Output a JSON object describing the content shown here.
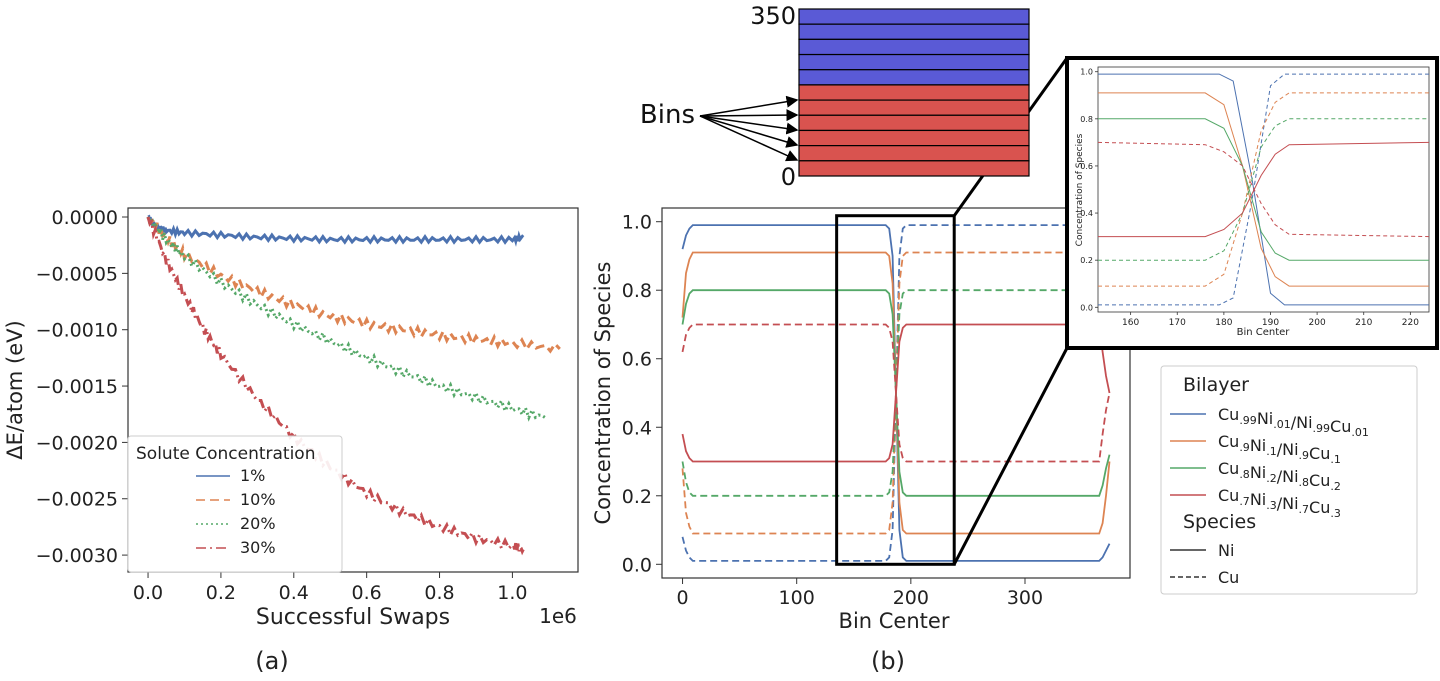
{
  "panel_labels": {
    "a": "(a)",
    "b": "(b)"
  },
  "colors": {
    "blue": "#4c72b0",
    "orange": "#dd8452",
    "green": "#55a868",
    "red": "#c44e52",
    "bin_blue": "#5a5ad6",
    "bin_red": "#d9534f"
  },
  "bins_diagram": {
    "label": "Bins",
    "top_label": "350",
    "bottom_label": "0"
  },
  "chart_data": [
    {
      "type": "line",
      "panel": "(a)",
      "xlabel": "Successful Swaps",
      "x_offset_label": "1e6",
      "ylabel": "ΔE/atom (eV)",
      "xlim": [
        -0.055,
        1.18
      ],
      "ylim": [
        -0.00315,
        8e-05
      ],
      "xticks": [
        0.0,
        0.2,
        0.4,
        0.6,
        0.8,
        1.0
      ],
      "xtick_labels": [
        "0.0",
        "0.2",
        "0.4",
        "0.6",
        "0.8",
        "1.0"
      ],
      "yticks": [
        0.0,
        -0.0005,
        -0.001,
        -0.0015,
        -0.002,
        -0.0025,
        -0.003
      ],
      "ytick_labels": [
        "0.0000",
        "−0.0005",
        "−0.0010",
        "−0.0015",
        "−0.0020",
        "−0.0025",
        "−0.0030"
      ],
      "legend": {
        "title": "Solute Concentration",
        "placement": "lower-left"
      },
      "series": [
        {
          "name": "1%",
          "color": "#4c72b0",
          "dash": "solid",
          "x": [
            0,
            0.02,
            0.05,
            0.1,
            0.2,
            0.3,
            0.4,
            0.5,
            0.6,
            0.7,
            0.8,
            0.9,
            1.0,
            1.03
          ],
          "y": [
            0,
            -8e-05,
            -0.00012,
            -0.00014,
            -0.00016,
            -0.00018,
            -0.00019,
            -0.0002,
            -0.0002,
            -0.0002,
            -0.0002,
            -0.0002,
            -0.0002,
            -0.00018
          ]
        },
        {
          "name": "10%",
          "color": "#dd8452",
          "dash": "dashed",
          "x": [
            0,
            0.05,
            0.1,
            0.2,
            0.3,
            0.4,
            0.5,
            0.6,
            0.7,
            0.8,
            0.9,
            1.0,
            1.13
          ],
          "y": [
            0,
            -0.00018,
            -0.00033,
            -0.00052,
            -0.00066,
            -0.00078,
            -0.00088,
            -0.00095,
            -0.001,
            -0.00105,
            -0.00109,
            -0.00112,
            -0.00117
          ]
        },
        {
          "name": "20%",
          "color": "#55a868",
          "dash": "dotted",
          "x": [
            0,
            0.05,
            0.1,
            0.2,
            0.3,
            0.4,
            0.5,
            0.6,
            0.7,
            0.8,
            0.9,
            1.0,
            1.09
          ],
          "y": [
            0,
            -0.0002,
            -0.00035,
            -0.00058,
            -0.00078,
            -0.00095,
            -0.0011,
            -0.00125,
            -0.00138,
            -0.0015,
            -0.0016,
            -0.0017,
            -0.00178
          ]
        },
        {
          "name": "30%",
          "color": "#c44e52",
          "dash": "dashdot",
          "x": [
            0,
            0.05,
            0.1,
            0.15,
            0.2,
            0.3,
            0.4,
            0.5,
            0.6,
            0.7,
            0.8,
            0.9,
            1.0,
            1.03
          ],
          "y": [
            0,
            -0.00038,
            -0.0007,
            -0.00098,
            -0.00122,
            -0.00162,
            -0.00195,
            -0.00222,
            -0.00245,
            -0.00262,
            -0.00275,
            -0.00285,
            -0.00292,
            -0.00295
          ]
        }
      ]
    },
    {
      "type": "line",
      "panel": "(b)",
      "xlabel": "Bin Center",
      "ylabel": "Concentration of Species",
      "xlim": [
        -18,
        392
      ],
      "ylim": [
        -0.04,
        1.04
      ],
      "xticks": [
        0,
        100,
        200,
        300
      ],
      "xtick_labels": [
        "0",
        "100",
        "200",
        "300"
      ],
      "yticks": [
        0.0,
        0.2,
        0.4,
        0.6,
        0.8,
        1.0
      ],
      "ytick_labels": [
        "0.0",
        "0.2",
        "0.4",
        "0.6",
        "0.8",
        "1.0"
      ],
      "legend": {
        "bilayer_title": "Bilayer",
        "species_title": "Species",
        "bilayer_entries": [
          {
            "prefix": "Cu",
            "s1": ".99",
            "mid": "Ni",
            "s2": ".01",
            "sep": "/Ni",
            "s3": ".99",
            "suf": "Cu",
            "s4": ".01",
            "color": "#4c72b0"
          },
          {
            "prefix": "Cu",
            "s1": ".9",
            "mid": "Ni",
            "s2": ".1",
            "sep": "/Ni",
            "s3": ".9",
            "suf": "Cu",
            "s4": ".1",
            "color": "#dd8452"
          },
          {
            "prefix": "Cu",
            "s1": ".8",
            "mid": "Ni",
            "s2": ".2",
            "sep": "/Ni",
            "s3": ".8",
            "suf": "Cu",
            "s4": ".2",
            "color": "#55a868"
          },
          {
            "prefix": "Cu",
            "s1": ".7",
            "mid": "Ni",
            "s2": ".3",
            "sep": "/Ni",
            "s3": ".7",
            "suf": "Cu",
            "s4": ".3",
            "color": "#c44e52"
          }
        ],
        "species_entries": [
          {
            "name": "Ni",
            "dash": "solid"
          },
          {
            "name": "Cu",
            "dash": "dashed"
          }
        ]
      },
      "zoom_box": {
        "x": [
          135,
          238
        ],
        "y": [
          0.0,
          1.0
        ]
      },
      "series": [
        {
          "bilayer": 0,
          "species": "Ni",
          "x": [
            0,
            3,
            6,
            9,
            178,
            181,
            184,
            187,
            190,
            193,
            196,
            365,
            368,
            371,
            374
          ],
          "y": [
            0.92,
            0.96,
            0.98,
            0.99,
            0.99,
            0.98,
            0.9,
            0.5,
            0.1,
            0.02,
            0.01,
            0.01,
            0.02,
            0.04,
            0.06
          ]
        },
        {
          "bilayer": 0,
          "species": "Cu",
          "x": [
            0,
            3,
            6,
            9,
            178,
            181,
            184,
            187,
            190,
            193,
            196,
            365,
            368,
            371,
            374
          ],
          "y": [
            0.08,
            0.04,
            0.02,
            0.01,
            0.01,
            0.02,
            0.1,
            0.5,
            0.9,
            0.98,
            0.99,
            0.99,
            0.98,
            0.96,
            0.94
          ]
        },
        {
          "bilayer": 1,
          "species": "Ni",
          "x": [
            0,
            3,
            6,
            9,
            178,
            181,
            184,
            187,
            190,
            193,
            196,
            365,
            368,
            371,
            374
          ],
          "y": [
            0.72,
            0.85,
            0.89,
            0.91,
            0.91,
            0.9,
            0.82,
            0.5,
            0.18,
            0.1,
            0.09,
            0.09,
            0.12,
            0.2,
            0.3
          ]
        },
        {
          "bilayer": 1,
          "species": "Cu",
          "x": [
            0,
            3,
            6,
            9,
            178,
            181,
            184,
            187,
            190,
            193,
            196,
            365,
            368,
            371,
            374
          ],
          "y": [
            0.28,
            0.15,
            0.11,
            0.09,
            0.09,
            0.1,
            0.18,
            0.5,
            0.82,
            0.9,
            0.91,
            0.91,
            0.88,
            0.8,
            0.7
          ]
        },
        {
          "bilayer": 2,
          "species": "Ni",
          "x": [
            0,
            3,
            6,
            9,
            178,
            181,
            184,
            187,
            190,
            193,
            196,
            365,
            368,
            371,
            374
          ],
          "y": [
            0.7,
            0.76,
            0.79,
            0.8,
            0.8,
            0.79,
            0.73,
            0.5,
            0.27,
            0.21,
            0.2,
            0.2,
            0.23,
            0.28,
            0.32
          ]
        },
        {
          "bilayer": 2,
          "species": "Cu",
          "x": [
            0,
            3,
            6,
            9,
            178,
            181,
            184,
            187,
            190,
            193,
            196,
            365,
            368,
            371,
            374
          ],
          "y": [
            0.3,
            0.24,
            0.21,
            0.2,
            0.2,
            0.21,
            0.27,
            0.5,
            0.73,
            0.79,
            0.8,
            0.8,
            0.77,
            0.72,
            0.68
          ]
        },
        {
          "bilayer": 3,
          "species": "Ni",
          "x": [
            0,
            3,
            6,
            9,
            178,
            181,
            184,
            187,
            190,
            193,
            196,
            365,
            368,
            371,
            374
          ],
          "y": [
            0.38,
            0.33,
            0.31,
            0.3,
            0.3,
            0.31,
            0.35,
            0.5,
            0.65,
            0.69,
            0.7,
            0.7,
            0.62,
            0.55,
            0.5
          ]
        },
        {
          "bilayer": 3,
          "species": "Cu",
          "x": [
            0,
            3,
            6,
            9,
            178,
            181,
            184,
            187,
            190,
            193,
            196,
            365,
            368,
            371,
            374
          ],
          "y": [
            0.62,
            0.67,
            0.69,
            0.7,
            0.7,
            0.69,
            0.65,
            0.5,
            0.35,
            0.31,
            0.3,
            0.3,
            0.38,
            0.45,
            0.5
          ]
        }
      ]
    },
    {
      "type": "line",
      "panel": "inset",
      "xlabel": "Bin Center",
      "ylabel": "Concentration of Species",
      "xlim": [
        153,
        224
      ],
      "ylim": [
        -0.02,
        1.02
      ],
      "xticks": [
        160,
        170,
        180,
        190,
        200,
        210,
        220
      ],
      "xtick_labels": [
        "160",
        "170",
        "180",
        "190",
        "200",
        "210",
        "220"
      ],
      "yticks": [
        0.0,
        0.2,
        0.4,
        0.6,
        0.8,
        1.0
      ],
      "ytick_labels": [
        "0.0",
        "0.2",
        "0.4",
        "0.6",
        "0.8",
        "1.0"
      ],
      "series": [
        {
          "bilayer": 0,
          "species": "Ni",
          "x": [
            153,
            179,
            182,
            186,
            190,
            193,
            224
          ],
          "y": [
            0.99,
            0.99,
            0.96,
            0.55,
            0.06,
            0.01,
            0.01
          ]
        },
        {
          "bilayer": 0,
          "species": "Cu",
          "x": [
            153,
            179,
            182,
            186,
            190,
            193,
            224
          ],
          "y": [
            0.01,
            0.01,
            0.04,
            0.45,
            0.94,
            0.99,
            0.99
          ]
        },
        {
          "bilayer": 1,
          "species": "Ni",
          "x": [
            153,
            176,
            180,
            184,
            188,
            191,
            194,
            224
          ],
          "y": [
            0.91,
            0.91,
            0.86,
            0.6,
            0.25,
            0.13,
            0.09,
            0.09
          ]
        },
        {
          "bilayer": 1,
          "species": "Cu",
          "x": [
            153,
            176,
            180,
            184,
            188,
            191,
            194,
            224
          ],
          "y": [
            0.09,
            0.09,
            0.14,
            0.4,
            0.75,
            0.87,
            0.91,
            0.91
          ]
        },
        {
          "bilayer": 2,
          "species": "Ni",
          "x": [
            153,
            176,
            180,
            184,
            188,
            191,
            194,
            224
          ],
          "y": [
            0.8,
            0.8,
            0.76,
            0.6,
            0.32,
            0.23,
            0.2,
            0.2
          ]
        },
        {
          "bilayer": 2,
          "species": "Cu",
          "x": [
            153,
            176,
            180,
            184,
            188,
            191,
            194,
            224
          ],
          "y": [
            0.2,
            0.2,
            0.24,
            0.4,
            0.68,
            0.77,
            0.8,
            0.8
          ]
        },
        {
          "bilayer": 3,
          "species": "Ni",
          "x": [
            153,
            176,
            180,
            184,
            188,
            191,
            194,
            224
          ],
          "y": [
            0.3,
            0.3,
            0.33,
            0.4,
            0.56,
            0.65,
            0.69,
            0.7
          ]
        },
        {
          "bilayer": 3,
          "species": "Cu",
          "x": [
            153,
            176,
            180,
            184,
            188,
            191,
            194,
            224
          ],
          "y": [
            0.7,
            0.69,
            0.66,
            0.6,
            0.44,
            0.35,
            0.31,
            0.3
          ]
        }
      ]
    }
  ]
}
